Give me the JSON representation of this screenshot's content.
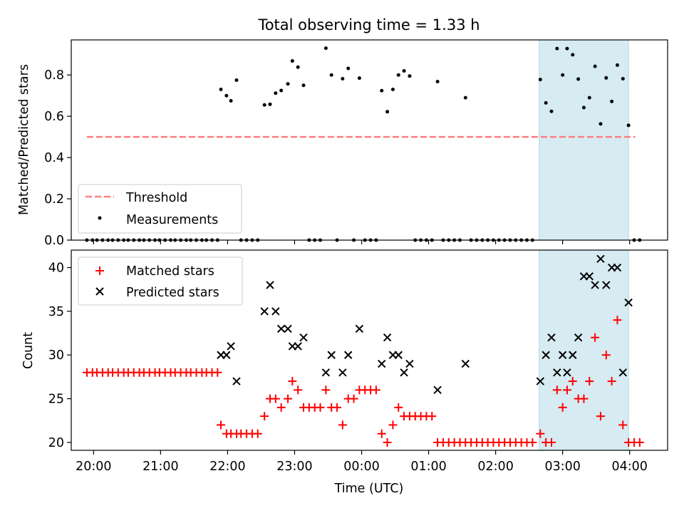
{
  "chart_data": [
    {
      "type": "scatter",
      "title": "Total observing time = 1.33 h",
      "xlabel": "",
      "ylabel": "Matched/Predicted stars",
      "ylim": [
        0,
        0.97
      ],
      "yticks": [
        "0.0",
        "0.2",
        "0.4",
        "0.6",
        "0.8"
      ],
      "grid": false,
      "legend_position": "lower-left",
      "highlight_span": {
        "from": "02:39",
        "to": "03:59",
        "color": "#add8e6"
      },
      "series": [
        {
          "name": "Threshold",
          "kind": "line",
          "style": "dashed",
          "color": "#ff7f7f",
          "x": [
            "19:54",
            "04:05"
          ],
          "y": [
            0.5,
            0.5
          ]
        },
        {
          "name": "Measurements",
          "kind": "scatter",
          "color": "#000000",
          "points": [
            [
              "19:54",
              0
            ],
            [
              "19:59",
              0
            ],
            [
              "20:03",
              0
            ],
            [
              "20:08",
              0
            ],
            [
              "20:13",
              0
            ],
            [
              "20:17",
              0
            ],
            [
              "20:22",
              0
            ],
            [
              "20:27",
              0
            ],
            [
              "20:31",
              0
            ],
            [
              "20:36",
              0
            ],
            [
              "20:41",
              0
            ],
            [
              "20:45",
              0
            ],
            [
              "20:50",
              0
            ],
            [
              "20:55",
              0
            ],
            [
              "20:59",
              0
            ],
            [
              "21:04",
              0
            ],
            [
              "21:09",
              0
            ],
            [
              "21:13",
              0
            ],
            [
              "21:18",
              0
            ],
            [
              "21:23",
              0
            ],
            [
              "21:27",
              0
            ],
            [
              "21:32",
              0
            ],
            [
              "21:37",
              0
            ],
            [
              "21:41",
              0
            ],
            [
              "21:46",
              0
            ],
            [
              "21:51",
              0
            ],
            [
              "21:54",
              0.73
            ],
            [
              "21:59",
              0.7
            ],
            [
              "22:03",
              0.675
            ],
            [
              "22:08",
              0.775
            ],
            [
              "22:12",
              0
            ],
            [
              "22:17",
              0
            ],
            [
              "22:22",
              0
            ],
            [
              "22:27",
              0
            ],
            [
              "22:33",
              0.655
            ],
            [
              "22:38",
              0.658
            ],
            [
              "22:43",
              0.712
            ],
            [
              "22:48",
              0.725
            ],
            [
              "22:54",
              0.757
            ],
            [
              "22:58",
              0.868
            ],
            [
              "23:03",
              0.838
            ],
            [
              "23:08",
              0.75
            ],
            [
              "23:13",
              0
            ],
            [
              "23:18",
              0
            ],
            [
              "23:23",
              0
            ],
            [
              "23:28",
              0.93
            ],
            [
              "23:33",
              0.8
            ],
            [
              "23:38",
              0
            ],
            [
              "23:43",
              0.782
            ],
            [
              "23:48",
              0.832
            ],
            [
              "23:53",
              0
            ],
            [
              "23:58",
              0.785
            ],
            [
              "00:03",
              0
            ],
            [
              "00:08",
              0
            ],
            [
              "00:13",
              0
            ],
            [
              "00:18",
              0.724
            ],
            [
              "00:23",
              0.622
            ],
            [
              "00:28",
              0.73
            ],
            [
              "00:33",
              0.8
            ],
            [
              "00:38",
              0.82
            ],
            [
              "00:43",
              0.795
            ],
            [
              "00:48",
              0
            ],
            [
              "00:53",
              0
            ],
            [
              "00:58",
              0
            ],
            [
              "01:03",
              0
            ],
            [
              "01:08",
              0.768
            ],
            [
              "01:13",
              0
            ],
            [
              "01:18",
              0
            ],
            [
              "01:23",
              0
            ],
            [
              "01:28",
              0
            ],
            [
              "01:33",
              0.69
            ],
            [
              "01:38",
              0
            ],
            [
              "01:43",
              0
            ],
            [
              "01:48",
              0
            ],
            [
              "01:53",
              0
            ],
            [
              "01:58",
              0
            ],
            [
              "02:03",
              0
            ],
            [
              "02:08",
              0
            ],
            [
              "02:13",
              0
            ],
            [
              "02:18",
              0
            ],
            [
              "02:23",
              0
            ],
            [
              "02:28",
              0
            ],
            [
              "02:33",
              0
            ],
            [
              "02:40",
              0.778
            ],
            [
              "02:45",
              0.665
            ],
            [
              "02:50",
              0.624
            ],
            [
              "02:55",
              0.928
            ],
            [
              "03:00",
              0.8
            ],
            [
              "03:04",
              0.928
            ],
            [
              "03:09",
              0.898
            ],
            [
              "03:14",
              0.78
            ],
            [
              "03:19",
              0.642
            ],
            [
              "03:24",
              0.69
            ],
            [
              "03:29",
              0.842
            ],
            [
              "03:34",
              0.563
            ],
            [
              "03:39",
              0.786
            ],
            [
              "03:44",
              0.672
            ],
            [
              "03:49",
              0.848
            ],
            [
              "03:54",
              0.782
            ],
            [
              "03:59",
              0.556
            ],
            [
              "04:04",
              0
            ],
            [
              "04:09",
              0
            ]
          ]
        }
      ]
    },
    {
      "type": "scatter",
      "title": "",
      "xlabel": "Time (UTC)",
      "ylabel": "Count",
      "ylim": [
        19.1,
        42
      ],
      "yticks": [
        "20",
        "25",
        "30",
        "35",
        "40"
      ],
      "xticks": [
        "20:00",
        "21:00",
        "22:00",
        "23:00",
        "00:00",
        "01:00",
        "02:00",
        "03:00",
        "04:00"
      ],
      "grid": false,
      "legend_position": "upper-left",
      "highlight_span": {
        "from": "02:39",
        "to": "03:59",
        "color": "#add8e6"
      },
      "series": [
        {
          "name": "Matched stars",
          "marker": "+",
          "color": "#ff0000",
          "points": [
            [
              "19:54",
              28
            ],
            [
              "19:59",
              28
            ],
            [
              "20:03",
              28
            ],
            [
              "20:08",
              28
            ],
            [
              "20:13",
              28
            ],
            [
              "20:17",
              28
            ],
            [
              "20:22",
              28
            ],
            [
              "20:27",
              28
            ],
            [
              "20:31",
              28
            ],
            [
              "20:36",
              28
            ],
            [
              "20:41",
              28
            ],
            [
              "20:45",
              28
            ],
            [
              "20:50",
              28
            ],
            [
              "20:55",
              28
            ],
            [
              "20:59",
              28
            ],
            [
              "21:04",
              28
            ],
            [
              "21:09",
              28
            ],
            [
              "21:13",
              28
            ],
            [
              "21:18",
              28
            ],
            [
              "21:23",
              28
            ],
            [
              "21:27",
              28
            ],
            [
              "21:32",
              28
            ],
            [
              "21:37",
              28
            ],
            [
              "21:41",
              28
            ],
            [
              "21:46",
              28
            ],
            [
              "21:51",
              28
            ],
            [
              "21:54",
              22
            ],
            [
              "21:59",
              21
            ],
            [
              "22:03",
              21
            ],
            [
              "22:08",
              21
            ],
            [
              "22:12",
              21
            ],
            [
              "22:17",
              21
            ],
            [
              "22:22",
              21
            ],
            [
              "22:27",
              21
            ],
            [
              "22:33",
              23
            ],
            [
              "22:38",
              25
            ],
            [
              "22:43",
              25
            ],
            [
              "22:48",
              24
            ],
            [
              "22:54",
              25
            ],
            [
              "22:58",
              27
            ],
            [
              "23:03",
              26
            ],
            [
              "23:08",
              24
            ],
            [
              "23:13",
              24
            ],
            [
              "23:18",
              24
            ],
            [
              "23:23",
              24
            ],
            [
              "23:28",
              26
            ],
            [
              "23:33",
              24
            ],
            [
              "23:38",
              24
            ],
            [
              "23:43",
              22
            ],
            [
              "23:48",
              25
            ],
            [
              "23:53",
              25
            ],
            [
              "23:58",
              26
            ],
            [
              "00:03",
              26
            ],
            [
              "00:08",
              26
            ],
            [
              "00:13",
              26
            ],
            [
              "00:18",
              21
            ],
            [
              "00:23",
              20
            ],
            [
              "00:28",
              22
            ],
            [
              "00:33",
              24
            ],
            [
              "00:38",
              23
            ],
            [
              "00:43",
              23
            ],
            [
              "00:48",
              23
            ],
            [
              "00:53",
              23
            ],
            [
              "00:58",
              23
            ],
            [
              "01:03",
              23
            ],
            [
              "01:08",
              20
            ],
            [
              "01:13",
              20
            ],
            [
              "01:18",
              20
            ],
            [
              "01:23",
              20
            ],
            [
              "01:28",
              20
            ],
            [
              "01:33",
              20
            ],
            [
              "01:38",
              20
            ],
            [
              "01:43",
              20
            ],
            [
              "01:48",
              20
            ],
            [
              "01:53",
              20
            ],
            [
              "01:58",
              20
            ],
            [
              "02:03",
              20
            ],
            [
              "02:08",
              20
            ],
            [
              "02:13",
              20
            ],
            [
              "02:18",
              20
            ],
            [
              "02:23",
              20
            ],
            [
              "02:28",
              20
            ],
            [
              "02:33",
              20
            ],
            [
              "02:40",
              21
            ],
            [
              "02:45",
              20
            ],
            [
              "02:50",
              20
            ],
            [
              "02:55",
              26
            ],
            [
              "03:00",
              24
            ],
            [
              "03:04",
              26
            ],
            [
              "03:09",
              27
            ],
            [
              "03:14",
              25
            ],
            [
              "03:19",
              25
            ],
            [
              "03:24",
              27
            ],
            [
              "03:29",
              32
            ],
            [
              "03:34",
              23
            ],
            [
              "03:39",
              30
            ],
            [
              "03:44",
              27
            ],
            [
              "03:49",
              34
            ],
            [
              "03:54",
              22
            ],
            [
              "03:59",
              20
            ],
            [
              "04:04",
              20
            ],
            [
              "04:09",
              20
            ]
          ]
        },
        {
          "name": "Predicted stars",
          "marker": "x",
          "color": "#000000",
          "points": [
            [
              "21:54",
              30
            ],
            [
              "21:59",
              30
            ],
            [
              "22:03",
              31
            ],
            [
              "22:08",
              27
            ],
            [
              "22:33",
              35
            ],
            [
              "22:38",
              38
            ],
            [
              "22:43",
              35
            ],
            [
              "22:48",
              33
            ],
            [
              "22:54",
              33
            ],
            [
              "22:58",
              31
            ],
            [
              "23:03",
              31
            ],
            [
              "23:08",
              32
            ],
            [
              "23:28",
              28
            ],
            [
              "23:33",
              30
            ],
            [
              "23:43",
              28
            ],
            [
              "23:48",
              30
            ],
            [
              "23:58",
              33
            ],
            [
              "00:18",
              29
            ],
            [
              "00:23",
              32
            ],
            [
              "00:28",
              30
            ],
            [
              "00:33",
              30
            ],
            [
              "00:38",
              28
            ],
            [
              "00:43",
              29
            ],
            [
              "01:08",
              26
            ],
            [
              "01:33",
              29
            ],
            [
              "02:40",
              27
            ],
            [
              "02:45",
              30
            ],
            [
              "02:50",
              32
            ],
            [
              "02:55",
              28
            ],
            [
              "03:00",
              30
            ],
            [
              "03:04",
              28
            ],
            [
              "03:09",
              30
            ],
            [
              "03:14",
              32
            ],
            [
              "03:19",
              39
            ],
            [
              "03:24",
              39
            ],
            [
              "03:29",
              38
            ],
            [
              "03:34",
              41
            ],
            [
              "03:39",
              38
            ],
            [
              "03:44",
              40
            ],
            [
              "03:49",
              40
            ],
            [
              "03:54",
              28
            ],
            [
              "03:59",
              36
            ]
          ]
        }
      ]
    }
  ]
}
